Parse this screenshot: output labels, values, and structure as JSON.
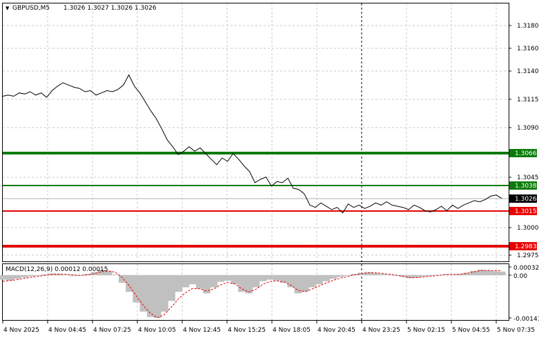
{
  "header": {
    "symbol": "GBPUSD,M5",
    "ohlc": "1.3026 1.3027 1.3026 1.3026",
    "dropdown_glyph": "▼"
  },
  "macd": {
    "label": "MACD(12,26,9) 0.00012 0.00015"
  },
  "colors": {
    "price_line": "#000000",
    "grid": "#c8c8c8",
    "support_green": "#0a7a0a",
    "resistance_red": "#e60000",
    "histogram": "#c0c0c0",
    "signal": "#e60000",
    "current_price_tag": "#000000"
  },
  "chart_data": [
    {
      "type": "line",
      "title": "GBPUSD,M5",
      "ylim": [
        1.2965,
        1.3195
      ],
      "y_ticks": [
        "1.3180",
        "1.3160",
        "1.3140",
        "1.3115",
        "1.3090",
        "1.3066",
        "1.3045",
        "1.3038",
        "1.3026",
        "1.3015",
        "1.3000",
        "1.2983",
        "1.2975"
      ],
      "x_ticks": [
        "4 Nov 2025",
        "4 Nov 04:45",
        "4 Nov 07:25",
        "4 Nov 10:05",
        "4 Nov 12:45",
        "4 Nov 15:25",
        "4 Nov 18:05",
        "4 Nov 20:45",
        "4 Nov 23:25",
        "5 Nov 02:15",
        "5 Nov 04:55",
        "5 Nov 07:35"
      ],
      "levels": [
        {
          "value": 1.3066,
          "label": "1.3066",
          "color": "green",
          "weight": "thick"
        },
        {
          "value": 1.3038,
          "label": "1.3038",
          "color": "green",
          "weight": "thin"
        },
        {
          "value": 1.3015,
          "label": "1.3015",
          "color": "red",
          "weight": "thin"
        },
        {
          "value": 1.2983,
          "label": "1.2983",
          "color": "red",
          "weight": "thick"
        }
      ],
      "current_price": {
        "value": 1.3026,
        "label": "1.3026"
      },
      "period_separator_x_index": 8,
      "series": [
        {
          "values": [
            1.3117,
            1.3118,
            1.3117,
            1.312,
            1.3119,
            1.3121,
            1.3118,
            1.312,
            1.3116,
            1.3122,
            1.3126,
            1.3129,
            1.3127,
            1.3125,
            1.3124,
            1.3121,
            1.3122,
            1.3118,
            1.312,
            1.3122,
            1.3121,
            1.3123,
            1.3127,
            1.3136,
            1.3126,
            1.312,
            1.3112,
            1.3104,
            1.3097,
            1.3088,
            1.3078,
            1.3072,
            1.3065,
            1.3068,
            1.3072,
            1.3068,
            1.3071,
            1.3066,
            1.3061,
            1.3056,
            1.3062,
            1.3059,
            1.3066,
            1.3061,
            1.3055,
            1.305,
            1.304,
            1.3043,
            1.3045,
            1.3037,
            1.3041,
            1.304,
            1.3044,
            1.3035,
            1.3034,
            1.303,
            1.302,
            1.3018,
            1.3022,
            1.3019,
            1.3016,
            1.3018,
            1.3013,
            1.3021,
            1.3018,
            1.302,
            1.3017,
            1.3019,
            1.3022,
            1.302,
            1.3023,
            1.302,
            1.3019,
            1.3018,
            1.3016,
            1.302,
            1.3018,
            1.3015,
            1.3014,
            1.3016,
            1.3019,
            1.3015,
            1.302,
            1.3017,
            1.302,
            1.3022,
            1.3024,
            1.3023,
            1.3025,
            1.3028,
            1.3029,
            1.3026
          ]
        }
      ]
    },
    {
      "type": "bar",
      "title": "MACD(12,26,9) 0.00012 0.00015",
      "ylim": [
        -0.0015,
        0.0004
      ],
      "y_ticks": [
        "0.00032",
        "0.00",
        "-0.00141"
      ],
      "series": [
        {
          "name": "MACD",
          "values": [
            -0.00015,
            -0.00018,
            -0.00012,
            -8e-05,
            -4e-05,
            -2e-05,
            3e-05,
            6e-05,
            5e-05,
            2e-05,
            -3e-05,
            -2e-05,
            4e-05,
            0.0001,
            0.00018,
            0.00014,
            2e-05,
            -0.00025,
            -0.00055,
            -0.0009,
            -0.0012,
            -0.00138,
            -0.00141,
            -0.0012,
            -0.00085,
            -0.00055,
            -0.0004,
            -0.0003,
            -0.00045,
            -0.0006,
            -0.0004,
            -0.00022,
            -0.00018,
            -0.0003,
            -0.00055,
            -0.0006,
            -0.0004,
            -0.0002,
            -0.00015,
            -0.00018,
            -0.00025,
            -0.0004,
            -0.0006,
            -0.00055,
            -0.0004,
            -0.0003,
            -0.0002,
            -0.00012,
            -6e-05,
            -2e-05,
            4e-05,
            8e-05,
            0.0001,
            7e-05,
            4e-05,
            2e-05,
            -2e-05,
            -6e-05,
            -0.0001,
            -8e-05,
            -4e-05,
            -2e-05,
            1e-05,
            3e-05,
            2e-05,
            4e-05,
            8e-05,
            0.00014,
            0.00018,
            0.00016,
            0.00013,
            0.00012
          ]
        },
        {
          "name": "Signal",
          "values": [
            -0.0002,
            -0.00018,
            -0.00015,
            -0.00011,
            -7e-05,
            -4e-05,
            -1e-05,
            2e-05,
            3e-05,
            3e-05,
            1e-05,
            -1e-05,
            1e-05,
            5e-05,
            0.00011,
            0.00014,
            0.0001,
            -8e-05,
            -0.00035,
            -0.00068,
            -0.001,
            -0.00125,
            -0.0014,
            -0.0013,
            -0.00105,
            -0.00078,
            -0.00058,
            -0.00044,
            -0.00045,
            -0.00052,
            -0.00046,
            -0.00032,
            -0.00024,
            -0.00028,
            -0.00045,
            -0.00055,
            -0.00047,
            -0.0003,
            -0.00021,
            -0.00019,
            -0.00022,
            -0.00033,
            -0.0005,
            -0.00054,
            -0.00046,
            -0.00036,
            -0.00026,
            -0.00017,
            -0.0001,
            -5e-05,
            1e-05,
            5e-05,
            8e-05,
            8e-05,
            6e-05,
            3e-05,
            0.0,
            -4e-05,
            -8e-05,
            -8e-05,
            -6e-05,
            -3e-05,
            -1e-05,
            2e-05,
            2e-05,
            3e-05,
            6e-05,
            0.00011,
            0.00015,
            0.00016,
            0.00015,
            0.00015
          ]
        }
      ]
    }
  ]
}
